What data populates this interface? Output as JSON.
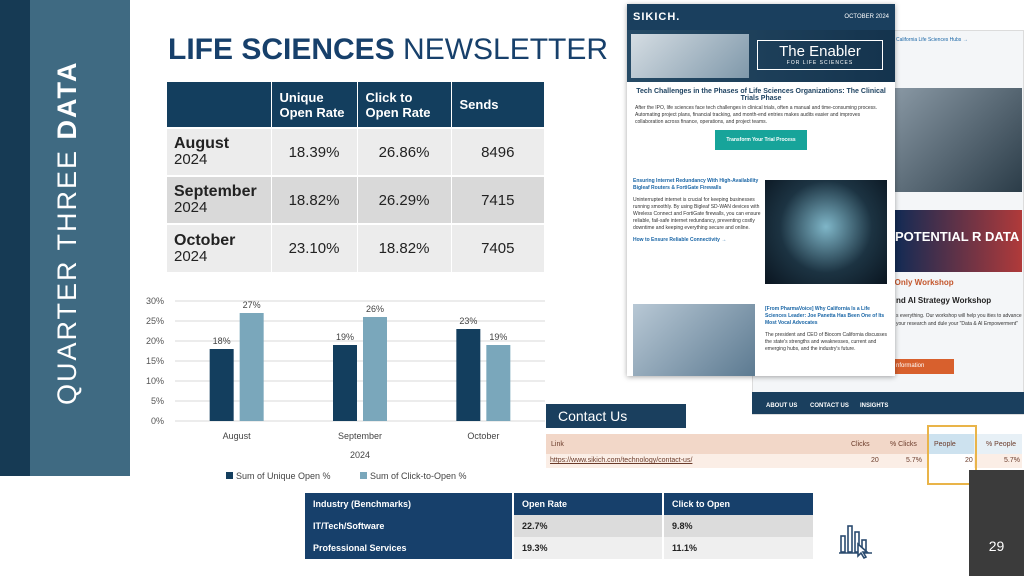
{
  "slide": {
    "vertical_title_regular": "QUARTER THREE ",
    "vertical_title_bold": "DATA",
    "title_bold": "LIFE SCIENCES",
    "title_regular": " NEWSLETTER",
    "page_number": "29"
  },
  "main_table": {
    "headers": [
      "",
      "Unique Open Rate",
      "Click to Open Rate",
      "Sends"
    ],
    "rows": [
      {
        "month": "August",
        "year": "2024",
        "unique": "18.39%",
        "cto": "26.86%",
        "sends": "8496"
      },
      {
        "month": "September",
        "year": "2024",
        "unique": "18.82%",
        "cto": "26.29%",
        "sends": "7415"
      },
      {
        "month": "October",
        "year": "2024",
        "unique": "23.10%",
        "cto": "18.82%",
        "sends": "7405"
      }
    ]
  },
  "chart_data": {
    "type": "bar",
    "categories": [
      "August",
      "September",
      "October"
    ],
    "series": [
      {
        "name": "Sum of Unique Open %",
        "values": [
          18,
          19,
          23
        ],
        "labels": [
          "18%",
          "19%",
          "23%"
        ],
        "color": "#133e5e"
      },
      {
        "name": "Sum of Click-to-Open %",
        "values": [
          27,
          26,
          19
        ],
        "labels": [
          "27%",
          "26%",
          "19%"
        ],
        "color": "#7aa7bb"
      }
    ],
    "xlabel": "2024",
    "ylabel": "",
    "ylim": [
      0,
      30
    ],
    "yticks": [
      "0%",
      "5%",
      "10%",
      "15%",
      "20%",
      "25%",
      "30%"
    ],
    "grid": true,
    "legend": "bottom"
  },
  "newsletter": {
    "logo": "SIKICH.",
    "date": "OCTOBER 2024",
    "banner_title": "The Enabler",
    "banner_sub": "FOR LIFE SCIENCES",
    "headline": "Tech Challenges in the Phases of Life Sciences Organizations: The Clinical Trials Phase",
    "intro": "After the IPO, life sciences face tech challenges in clinical trials, often a manual and time-consuming process. Automating project plans, financial tracking, and month-end entries makes audits easier and improves collaboration across finance, operations, and project teams.",
    "cta": "Transform Your Trial Process",
    "article1_title": "Ensuring Internet Redundancy With High-Availability Bigleaf Routers & FortiGate Firewalls",
    "article1_body": "Uninterrupted internet is crucial for keeping businesses running smoothly. By using Bigleaf SD-WAN devices with Wireless Connect and FortiGate firewalls, you can ensure reliable, fail-safe internet redundancy, preventing costly downtime and keeping everything secure and online.",
    "article1_link": "How to Ensure Reliable Connectivity →",
    "article2_title": "[From PharmaVoice] Why California Is a Life Sciences Leader: Joe Panetta Has Been One of Its Most Vocal Advocates",
    "article2_body": "The president and CEO of Biocom California discusses the state's strengths and weaknesses, current and emerging hubs, and the industry's future.",
    "right_link": "California Life Sciences Hubs →",
    "promo_text": "POTENTIAL R DATA",
    "promo_sub": "-Only Workshop",
    "promo_head": "nd AI Strategy Workshop",
    "promo_body": "s everything. Our workshop will help you ities to advance your research and dule your \"Data & AI Empowerment\"",
    "promo_btn": "nformation",
    "footer_links": [
      "ABOUT US",
      "CONTACT US",
      "INSIGHTS"
    ]
  },
  "contact": {
    "title": "Contact Us",
    "headers": [
      "Link",
      "Clicks",
      "% Clicks",
      "People",
      "% People"
    ],
    "row": {
      "link": "https://www.sikich.com/technology/contact-us/",
      "clicks": "20",
      "pct_clicks": "5.7%",
      "people": "20",
      "pct_people": "5.7%"
    }
  },
  "benchmarks": {
    "headers": [
      "Industry (Benchmarks)",
      "Open Rate",
      "Click to Open"
    ],
    "rows": [
      {
        "industry": "IT/Tech/Software",
        "open": "22.7%",
        "cto": "9.8%"
      },
      {
        "industry": "Professional Services",
        "open": "19.3%",
        "cto": "11.1%"
      }
    ]
  }
}
